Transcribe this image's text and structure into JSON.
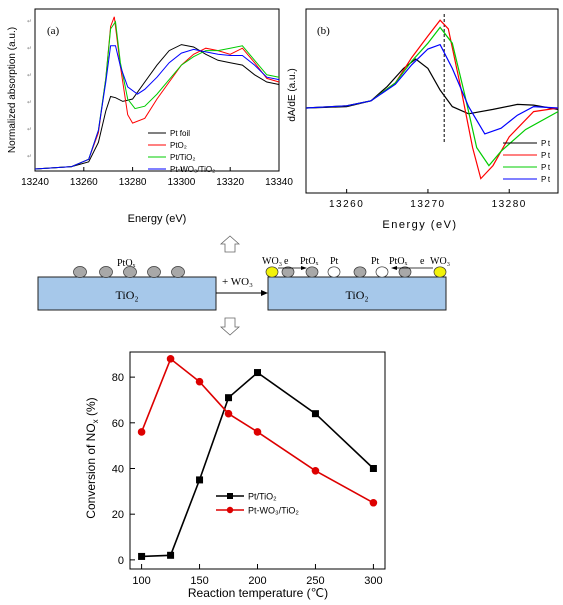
{
  "charts": {
    "a": {
      "type": "line",
      "panel_label": "(a)",
      "xlabel": "Energy (eV)",
      "ylabel": "Normalized absorption (a.u.)",
      "xlim": [
        13240,
        13340
      ],
      "xticks": [
        "13240",
        "13260",
        "13280",
        "13300",
        "13320",
        "13340"
      ],
      "legend": [
        {
          "label": "Pt foil",
          "color": "#000000"
        },
        {
          "label": "PtO₂",
          "color": "#ff0000"
        },
        {
          "label": "Pt/TiO₂",
          "color": "#00cc00"
        },
        {
          "label": "Pt-WO₃/TiO₂",
          "color": "#0000ff"
        }
      ],
      "series": [
        {
          "name": "Pt foil",
          "color": "#000000",
          "x": [
            13240,
            13255,
            13262,
            13266,
            13269,
            13271,
            13273,
            13276,
            13280,
            13285,
            13290,
            13295,
            13300,
            13305,
            13310,
            13315,
            13320,
            13325,
            13330,
            13335,
            13340
          ],
          "y": [
            0.0,
            0.02,
            0.06,
            0.22,
            0.48,
            0.6,
            0.59,
            0.56,
            0.58,
            0.72,
            0.86,
            0.98,
            1.03,
            1.01,
            0.95,
            0.9,
            0.88,
            0.86,
            0.78,
            0.72,
            0.7
          ]
        },
        {
          "name": "PtO₂",
          "color": "#ff0000",
          "x": [
            13240,
            13255,
            13262,
            13266,
            13269,
            13271,
            13272.5,
            13275,
            13278,
            13280,
            13285,
            13290,
            13295,
            13300,
            13305,
            13310,
            13315,
            13320,
            13325,
            13330,
            13335,
            13340
          ],
          "y": [
            0.0,
            0.02,
            0.08,
            0.3,
            0.75,
            1.18,
            1.26,
            0.85,
            0.45,
            0.38,
            0.42,
            0.58,
            0.72,
            0.86,
            0.95,
            1.0,
            0.98,
            0.95,
            1.0,
            0.88,
            0.75,
            0.72
          ]
        },
        {
          "name": "Pt/TiO₂",
          "color": "#00cc00",
          "x": [
            13240,
            13255,
            13262,
            13266,
            13269,
            13271,
            13273,
            13275,
            13278,
            13281,
            13285,
            13290,
            13295,
            13300,
            13305,
            13310,
            13315,
            13320,
            13325,
            13330,
            13335,
            13340
          ],
          "y": [
            0.0,
            0.02,
            0.08,
            0.32,
            0.75,
            1.16,
            1.22,
            0.88,
            0.58,
            0.5,
            0.52,
            0.62,
            0.74,
            0.86,
            0.93,
            0.98,
            0.98,
            1.0,
            1.02,
            0.9,
            0.78,
            0.76
          ]
        },
        {
          "name": "Pt-WO₃/TiO₂",
          "color": "#0000ff",
          "x": [
            13240,
            13255,
            13262,
            13266,
            13269,
            13271,
            13273,
            13275,
            13278,
            13282,
            13285,
            13290,
            13295,
            13300,
            13305,
            13310,
            13315,
            13320,
            13325,
            13330,
            13335,
            13340
          ],
          "y": [
            0.0,
            0.02,
            0.08,
            0.32,
            0.72,
            1.02,
            1.02,
            0.85,
            0.68,
            0.62,
            0.66,
            0.76,
            0.88,
            0.96,
            0.99,
            0.97,
            0.95,
            0.94,
            0.94,
            0.86,
            0.76,
            0.74
          ]
        }
      ]
    },
    "b": {
      "type": "line",
      "panel_label": "(b)",
      "xlabel": "Energy (eV)",
      "ylabel": "dA/dE (a.u.)",
      "xlim": [
        13255,
        13286
      ],
      "xticks": [
        "13260",
        "13270",
        "13280"
      ],
      "marker_x": 13272,
      "legend": [
        {
          "label": "Pt",
          "color": "#000000"
        },
        {
          "label": "Pt",
          "color": "#ff0000"
        },
        {
          "label": "Pt",
          "color": "#00cc00"
        },
        {
          "label": "Pt",
          "color": "#0000ff"
        }
      ],
      "series": [
        {
          "name": "Pt",
          "color": "#000000",
          "x": [
            13255,
            13260,
            13263,
            13265,
            13267,
            13268.5,
            13270,
            13271.5,
            13273,
            13275,
            13278,
            13281,
            13283,
            13286
          ],
          "y": [
            0.0,
            0.02,
            0.1,
            0.3,
            0.55,
            0.68,
            0.55,
            0.25,
            0.02,
            -0.08,
            -0.02,
            0.05,
            0.04,
            -0.02
          ]
        },
        {
          "name": "Pt",
          "color": "#ff0000",
          "x": [
            13255,
            13260,
            13263,
            13266,
            13268,
            13270,
            13271.5,
            13272.5,
            13274,
            13275.5,
            13276.5,
            13278,
            13280,
            13283,
            13286
          ],
          "y": [
            0.0,
            0.03,
            0.1,
            0.35,
            0.7,
            1.0,
            1.22,
            1.1,
            0.3,
            -0.55,
            -0.98,
            -0.8,
            -0.4,
            -0.05,
            0.0
          ]
        },
        {
          "name": "Pt",
          "color": "#00cc00",
          "x": [
            13255,
            13260,
            13263,
            13266,
            13268,
            13270,
            13271.5,
            13273,
            13274.5,
            13276,
            13277.5,
            13279,
            13282,
            13286
          ],
          "y": [
            0.0,
            0.03,
            0.1,
            0.35,
            0.65,
            0.9,
            1.12,
            0.9,
            0.2,
            -0.55,
            -0.8,
            -0.6,
            -0.3,
            -0.05
          ]
        },
        {
          "name": "Pt",
          "color": "#0000ff",
          "x": [
            13255,
            13260,
            13263,
            13266,
            13268,
            13270,
            13271.5,
            13273,
            13275,
            13277,
            13279,
            13281,
            13283,
            13286
          ],
          "y": [
            0.0,
            0.03,
            0.1,
            0.33,
            0.6,
            0.82,
            0.88,
            0.55,
            0.02,
            -0.36,
            -0.28,
            -0.1,
            0.02,
            0.0
          ]
        }
      ]
    },
    "c": {
      "type": "line",
      "xlabel": "Reaction temperature (℃)",
      "ylabel": "Conversion of NO",
      "ylabel_sub": "x",
      "ylabel_tail": " (%)",
      "xlim": [
        90,
        310
      ],
      "ylim": [
        -4,
        91
      ],
      "xticks": [
        100,
        150,
        200,
        250,
        300
      ],
      "yticks": [
        0,
        20,
        40,
        60,
        80
      ],
      "series": [
        {
          "name": "Pt/TiO₂",
          "color": "#000000",
          "marker": "square",
          "x": [
            100,
            125,
            150,
            175,
            200,
            250,
            300
          ],
          "y": [
            1.5,
            2,
            35,
            71,
            82,
            64,
            40
          ]
        },
        {
          "name": "Pt-WO₃/TiO₂",
          "color": "#dd0000",
          "marker": "circle",
          "x": [
            100,
            125,
            150,
            175,
            200,
            250,
            300
          ],
          "y": [
            56,
            88,
            78,
            64,
            56,
            39,
            25
          ]
        }
      ]
    }
  },
  "schematic": {
    "substrate_label": "TiO₂",
    "pt_label": "PtOₓ",
    "plus_label": "+ WO₃",
    "wo3_label": "WO₃",
    "e_label": "e",
    "pto_label": "PtOₓ",
    "pt_label_b": "Pt",
    "pt_label_c": "Pt",
    "pto_label_b": "PtOₓ",
    "e_label_b": "e",
    "wo3_label_b": "WO₃"
  }
}
